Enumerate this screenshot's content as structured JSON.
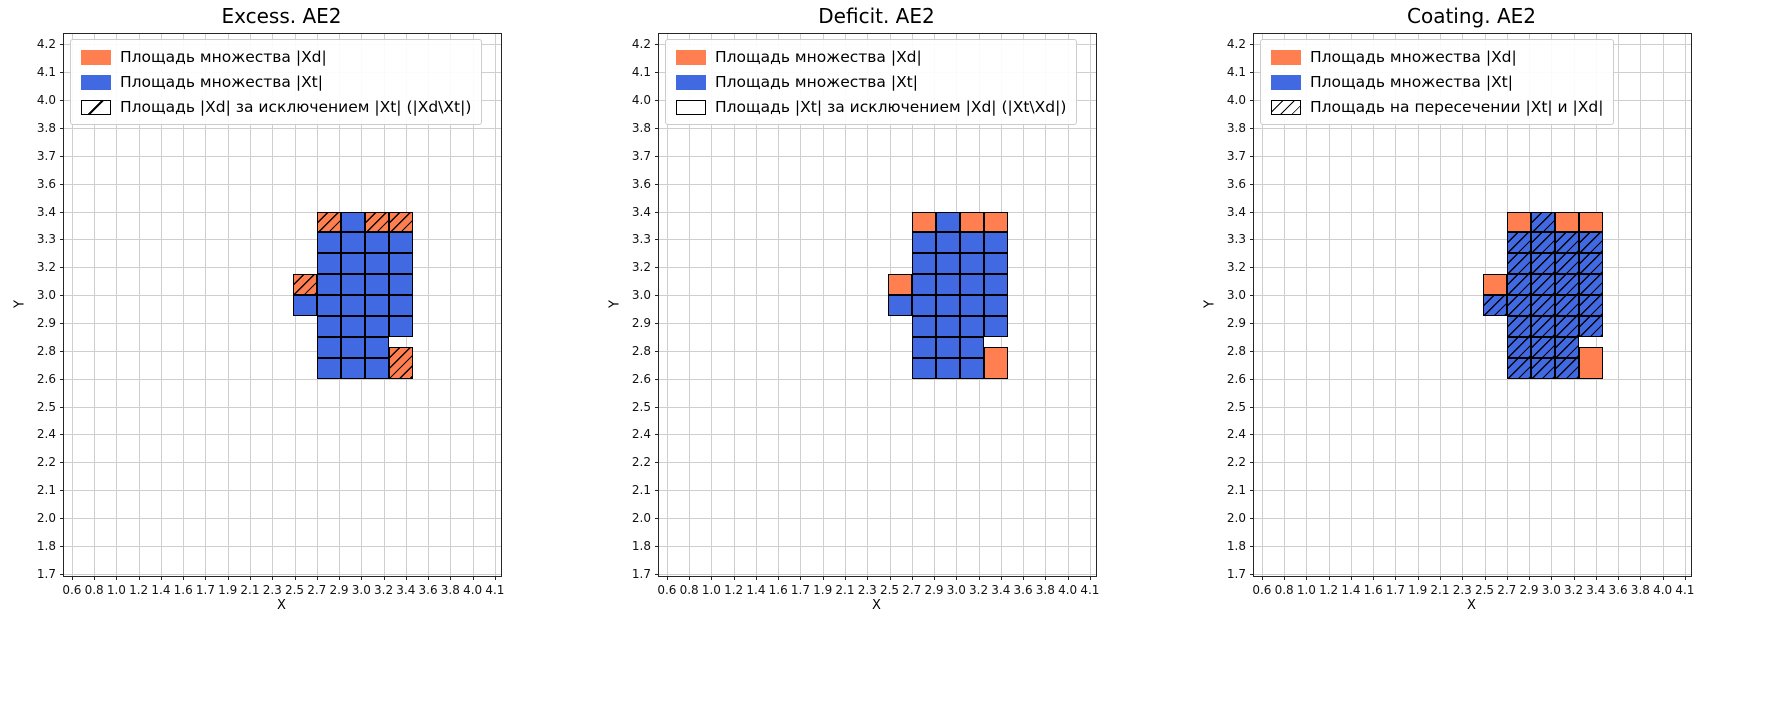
{
  "colors": {
    "xd_fill": "#ff7f50",
    "xt_fill": "#4169e1",
    "grid_line": "#cfcfcf",
    "axes_border": "#262626"
  },
  "axes": {
    "x_label": "X",
    "y_label": "Y",
    "x_ticks": [
      "0.6",
      "0.8",
      "1.0",
      "1.2",
      "1.4",
      "1.6",
      "1.7",
      "1.9",
      "2.1",
      "2.3",
      "2.5",
      "2.7",
      "2.9",
      "3.0",
      "3.2",
      "3.4",
      "3.6",
      "3.8",
      "4.0",
      "4.1"
    ],
    "y_ticks": [
      "1.7",
      "1.8",
      "2.0",
      "2.1",
      "2.2",
      "2.4",
      "2.5",
      "2.6",
      "2.8",
      "2.9",
      "3.0",
      "3.2",
      "3.3",
      "3.4",
      "3.6",
      "3.7",
      "3.8",
      "4.0",
      "4.1",
      "4.2"
    ]
  },
  "chart_data": [
    {
      "type": "heatmap",
      "title": "Excess. AE2",
      "xlabel": "X",
      "ylabel": "Y",
      "legend": [
        {
          "swatch": "orange",
          "label": "Площадь множества |Xd|"
        },
        {
          "swatch": "blue",
          "label": "Площадь множества  |Xt|"
        },
        {
          "swatch": "hatch1",
          "label": "Площадь |Xd| за исключением |Xt| (|Xd\\Xt|)"
        }
      ],
      "cell_format": [
        "x",
        "y",
        "width",
        "height",
        "set",
        "hatched"
      ],
      "cells": [
        [
          2.7,
          3.3,
          0.2,
          0.1,
          "xd",
          1
        ],
        [
          2.9,
          3.3,
          0.2,
          0.1,
          "xt",
          0
        ],
        [
          3.1,
          3.3,
          0.2,
          0.1,
          "xd",
          1
        ],
        [
          3.3,
          3.3,
          0.2,
          0.1,
          "xd",
          1
        ],
        [
          2.7,
          3.2,
          0.2,
          0.1,
          "xt",
          0
        ],
        [
          2.9,
          3.2,
          0.2,
          0.1,
          "xt",
          0
        ],
        [
          3.1,
          3.2,
          0.2,
          0.1,
          "xt",
          0
        ],
        [
          3.3,
          3.2,
          0.2,
          0.1,
          "xt",
          0
        ],
        [
          2.7,
          3.1,
          0.2,
          0.1,
          "xt",
          0
        ],
        [
          2.9,
          3.1,
          0.2,
          0.1,
          "xt",
          0
        ],
        [
          3.1,
          3.1,
          0.2,
          0.1,
          "xt",
          0
        ],
        [
          3.3,
          3.1,
          0.2,
          0.1,
          "xt",
          0
        ],
        [
          2.5,
          3.0,
          0.2,
          0.1,
          "xd",
          1
        ],
        [
          2.7,
          3.0,
          0.2,
          0.1,
          "xt",
          0
        ],
        [
          2.9,
          3.0,
          0.2,
          0.1,
          "xt",
          0
        ],
        [
          3.1,
          3.0,
          0.2,
          0.1,
          "xt",
          0
        ],
        [
          3.3,
          3.0,
          0.2,
          0.1,
          "xt",
          0
        ],
        [
          2.5,
          2.9,
          0.2,
          0.1,
          "xt",
          0
        ],
        [
          2.7,
          2.9,
          0.2,
          0.1,
          "xt",
          0
        ],
        [
          2.9,
          2.9,
          0.2,
          0.1,
          "xt",
          0
        ],
        [
          3.1,
          2.9,
          0.2,
          0.1,
          "xt",
          0
        ],
        [
          3.3,
          2.9,
          0.2,
          0.1,
          "xt",
          0
        ],
        [
          2.7,
          2.8,
          0.2,
          0.1,
          "xt",
          0
        ],
        [
          2.9,
          2.8,
          0.2,
          0.1,
          "xt",
          0
        ],
        [
          3.1,
          2.8,
          0.2,
          0.1,
          "xt",
          0
        ],
        [
          3.3,
          2.8,
          0.2,
          0.1,
          "xt",
          0
        ],
        [
          2.7,
          2.7,
          0.2,
          0.1,
          "xt",
          0
        ],
        [
          2.9,
          2.7,
          0.2,
          0.1,
          "xt",
          0
        ],
        [
          3.1,
          2.7,
          0.2,
          0.1,
          "xt",
          0
        ],
        [
          2.7,
          2.6,
          0.2,
          0.1,
          "xt",
          0
        ],
        [
          2.9,
          2.6,
          0.2,
          0.1,
          "xt",
          0
        ],
        [
          3.1,
          2.6,
          0.2,
          0.1,
          "xt",
          0
        ],
        [
          3.3,
          2.6,
          0.2,
          0.15,
          "xd",
          1
        ]
      ]
    },
    {
      "type": "heatmap",
      "title": "Deficit. AE2",
      "xlabel": "X",
      "ylabel": "Y",
      "legend": [
        {
          "swatch": "orange",
          "label": "Площадь множества |Xd|"
        },
        {
          "swatch": "blue",
          "label": "Площадь множества  |Xt|"
        },
        {
          "swatch": "plain",
          "label": "Площадь |Xt| за исключением |Xd| (|Xt\\Xd|)"
        }
      ],
      "cell_format": [
        "x",
        "y",
        "width",
        "height",
        "set",
        "hatched"
      ],
      "cells": [
        [
          2.7,
          3.3,
          0.2,
          0.1,
          "xd",
          0
        ],
        [
          2.9,
          3.3,
          0.2,
          0.1,
          "xt",
          0
        ],
        [
          3.1,
          3.3,
          0.2,
          0.1,
          "xd",
          0
        ],
        [
          3.3,
          3.3,
          0.2,
          0.1,
          "xd",
          0
        ],
        [
          2.7,
          3.2,
          0.2,
          0.1,
          "xt",
          0
        ],
        [
          2.9,
          3.2,
          0.2,
          0.1,
          "xt",
          0
        ],
        [
          3.1,
          3.2,
          0.2,
          0.1,
          "xt",
          0
        ],
        [
          3.3,
          3.2,
          0.2,
          0.1,
          "xt",
          0
        ],
        [
          2.7,
          3.1,
          0.2,
          0.1,
          "xt",
          0
        ],
        [
          2.9,
          3.1,
          0.2,
          0.1,
          "xt",
          0
        ],
        [
          3.1,
          3.1,
          0.2,
          0.1,
          "xt",
          0
        ],
        [
          3.3,
          3.1,
          0.2,
          0.1,
          "xt",
          0
        ],
        [
          2.5,
          3.0,
          0.2,
          0.1,
          "xd",
          0
        ],
        [
          2.7,
          3.0,
          0.2,
          0.1,
          "xt",
          0
        ],
        [
          2.9,
          3.0,
          0.2,
          0.1,
          "xt",
          0
        ],
        [
          3.1,
          3.0,
          0.2,
          0.1,
          "xt",
          0
        ],
        [
          3.3,
          3.0,
          0.2,
          0.1,
          "xt",
          0
        ],
        [
          2.5,
          2.9,
          0.2,
          0.1,
          "xt",
          0
        ],
        [
          2.7,
          2.9,
          0.2,
          0.1,
          "xt",
          0
        ],
        [
          2.9,
          2.9,
          0.2,
          0.1,
          "xt",
          0
        ],
        [
          3.1,
          2.9,
          0.2,
          0.1,
          "xt",
          0
        ],
        [
          3.3,
          2.9,
          0.2,
          0.1,
          "xt",
          0
        ],
        [
          2.7,
          2.8,
          0.2,
          0.1,
          "xt",
          0
        ],
        [
          2.9,
          2.8,
          0.2,
          0.1,
          "xt",
          0
        ],
        [
          3.1,
          2.8,
          0.2,
          0.1,
          "xt",
          0
        ],
        [
          3.3,
          2.8,
          0.2,
          0.1,
          "xt",
          0
        ],
        [
          2.7,
          2.7,
          0.2,
          0.1,
          "xt",
          0
        ],
        [
          2.9,
          2.7,
          0.2,
          0.1,
          "xt",
          0
        ],
        [
          3.1,
          2.7,
          0.2,
          0.1,
          "xt",
          0
        ],
        [
          2.7,
          2.6,
          0.2,
          0.1,
          "xt",
          0
        ],
        [
          2.9,
          2.6,
          0.2,
          0.1,
          "xt",
          0
        ],
        [
          3.1,
          2.6,
          0.2,
          0.1,
          "xt",
          0
        ],
        [
          3.3,
          2.6,
          0.2,
          0.15,
          "xd",
          0
        ]
      ]
    },
    {
      "type": "heatmap",
      "title": "Coating. AE2",
      "xlabel": "X",
      "ylabel": "Y",
      "legend": [
        {
          "swatch": "orange",
          "label": "Площадь множества |Xd|"
        },
        {
          "swatch": "blue",
          "label": "Площадь множества  |Xt|"
        },
        {
          "swatch": "hatch",
          "label": "Площадь на пересечении |Xt| и |Xd|"
        }
      ],
      "cell_format": [
        "x",
        "y",
        "width",
        "height",
        "set",
        "hatched"
      ],
      "cells": [
        [
          2.7,
          3.3,
          0.2,
          0.1,
          "xd",
          0
        ],
        [
          2.9,
          3.3,
          0.2,
          0.1,
          "xt",
          1
        ],
        [
          3.1,
          3.3,
          0.2,
          0.1,
          "xd",
          0
        ],
        [
          3.3,
          3.3,
          0.2,
          0.1,
          "xd",
          0
        ],
        [
          2.7,
          3.2,
          0.2,
          0.1,
          "xt",
          1
        ],
        [
          2.9,
          3.2,
          0.2,
          0.1,
          "xt",
          1
        ],
        [
          3.1,
          3.2,
          0.2,
          0.1,
          "xt",
          1
        ],
        [
          3.3,
          3.2,
          0.2,
          0.1,
          "xt",
          1
        ],
        [
          2.7,
          3.1,
          0.2,
          0.1,
          "xt",
          1
        ],
        [
          2.9,
          3.1,
          0.2,
          0.1,
          "xt",
          1
        ],
        [
          3.1,
          3.1,
          0.2,
          0.1,
          "xt",
          1
        ],
        [
          3.3,
          3.1,
          0.2,
          0.1,
          "xt",
          1
        ],
        [
          2.5,
          3.0,
          0.2,
          0.1,
          "xd",
          0
        ],
        [
          2.7,
          3.0,
          0.2,
          0.1,
          "xt",
          1
        ],
        [
          2.9,
          3.0,
          0.2,
          0.1,
          "xt",
          1
        ],
        [
          3.1,
          3.0,
          0.2,
          0.1,
          "xt",
          1
        ],
        [
          3.3,
          3.0,
          0.2,
          0.1,
          "xt",
          1
        ],
        [
          2.5,
          2.9,
          0.2,
          0.1,
          "xt",
          1
        ],
        [
          2.7,
          2.9,
          0.2,
          0.1,
          "xt",
          1
        ],
        [
          2.9,
          2.9,
          0.2,
          0.1,
          "xt",
          1
        ],
        [
          3.1,
          2.9,
          0.2,
          0.1,
          "xt",
          1
        ],
        [
          3.3,
          2.9,
          0.2,
          0.1,
          "xt",
          1
        ],
        [
          2.7,
          2.8,
          0.2,
          0.1,
          "xt",
          1
        ],
        [
          2.9,
          2.8,
          0.2,
          0.1,
          "xt",
          1
        ],
        [
          3.1,
          2.8,
          0.2,
          0.1,
          "xt",
          1
        ],
        [
          3.3,
          2.8,
          0.2,
          0.1,
          "xt",
          1
        ],
        [
          2.7,
          2.7,
          0.2,
          0.1,
          "xt",
          1
        ],
        [
          2.9,
          2.7,
          0.2,
          0.1,
          "xt",
          1
        ],
        [
          3.1,
          2.7,
          0.2,
          0.1,
          "xt",
          1
        ],
        [
          2.7,
          2.6,
          0.2,
          0.1,
          "xt",
          1
        ],
        [
          2.9,
          2.6,
          0.2,
          0.1,
          "xt",
          1
        ],
        [
          3.1,
          2.6,
          0.2,
          0.1,
          "xt",
          1
        ],
        [
          3.3,
          2.6,
          0.2,
          0.15,
          "xd",
          0
        ]
      ]
    }
  ]
}
